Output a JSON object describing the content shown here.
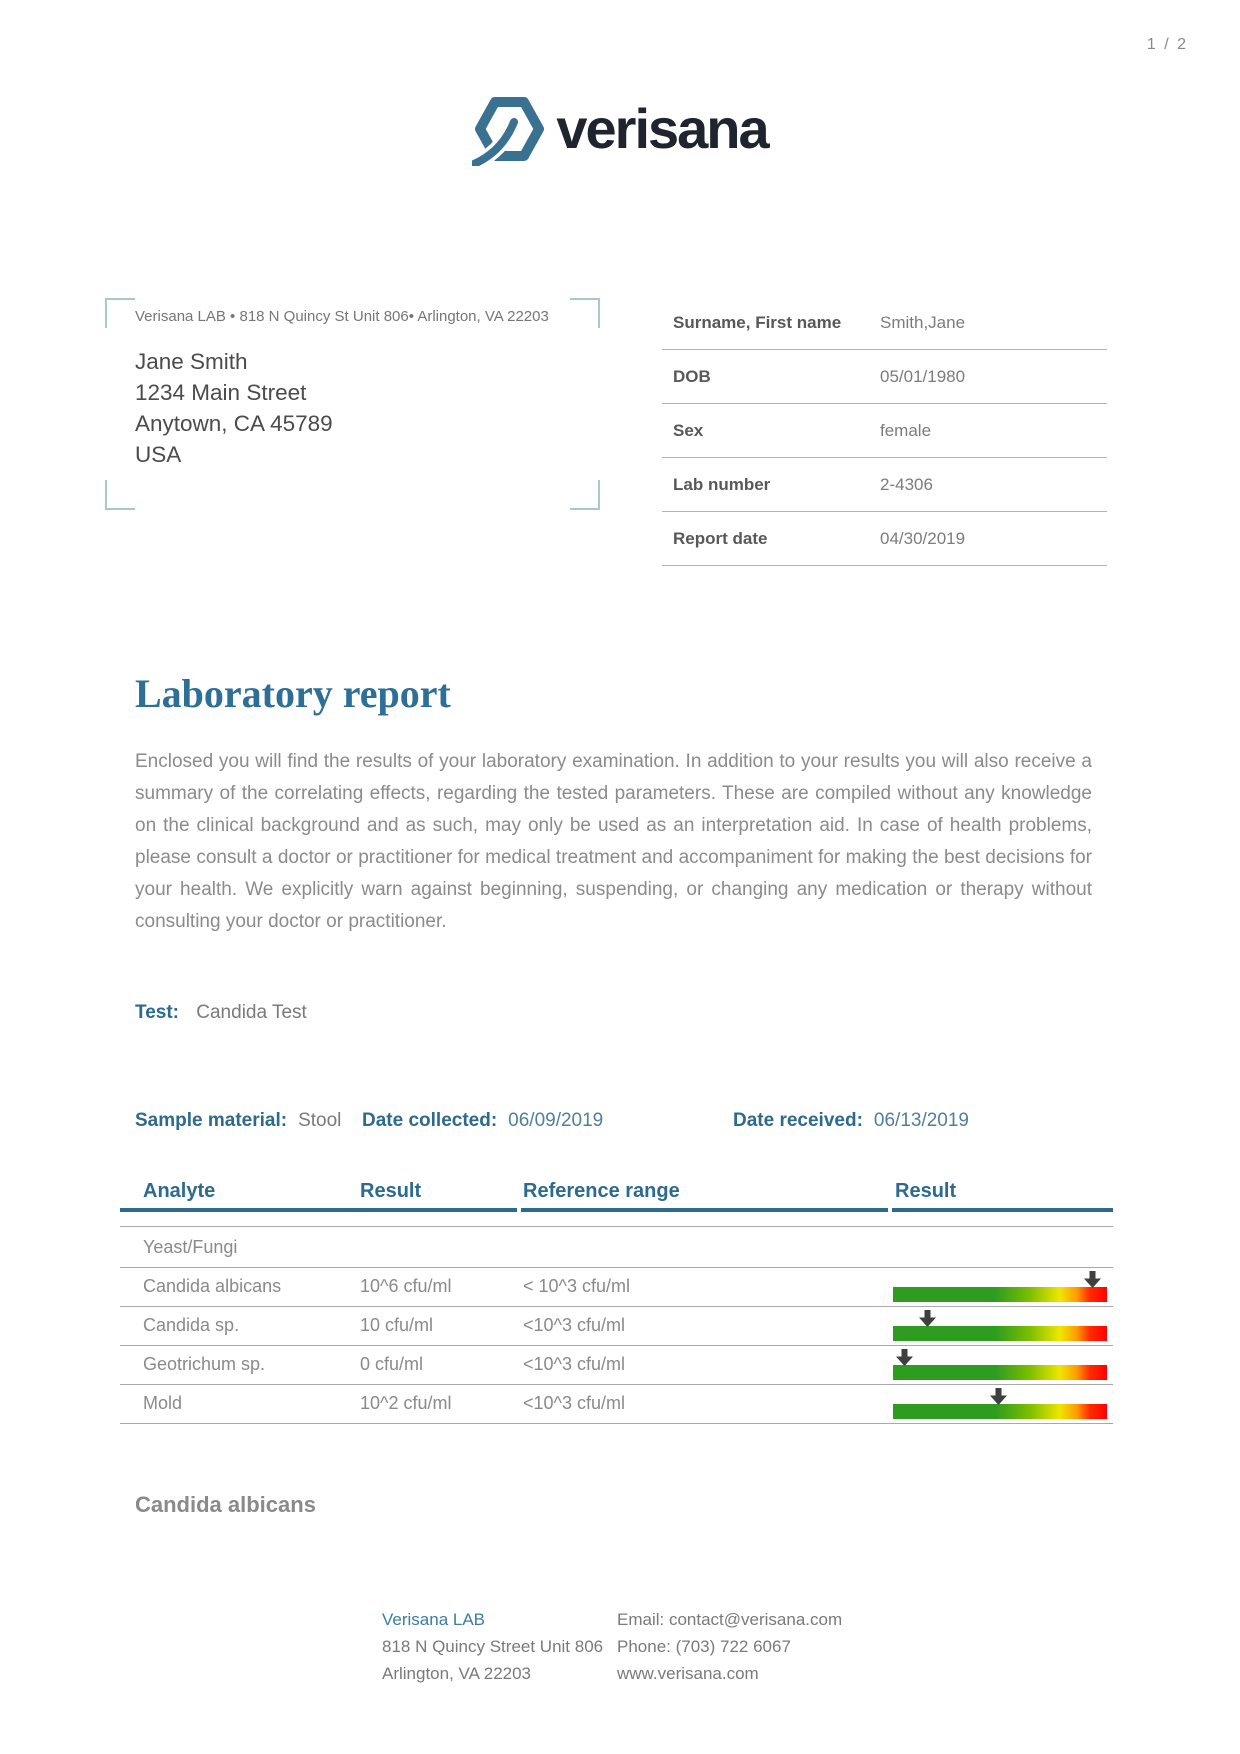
{
  "page": {
    "number": "1 / 2"
  },
  "logo": {
    "text": "verisana",
    "icon_color": "#3a7191",
    "text_color": "#20242e"
  },
  "address_window": {
    "sender_line": "Verisana LAB • 818 N Quincy St Unit 806• Arlington, VA 22203",
    "recipient": [
      "Jane Smith",
      "1234 Main Street",
      "Anytown, CA 45789",
      "USA"
    ]
  },
  "patient_info": {
    "rows": [
      {
        "label": "Surname, First name",
        "value": "Smith,Jane"
      },
      {
        "label": "DOB",
        "value": "05/01/1980"
      },
      {
        "label": "Sex",
        "value": "female"
      },
      {
        "label": "Lab number",
        "value": "2-4306"
      },
      {
        "label": "Report date",
        "value": "04/30/2019"
      }
    ]
  },
  "report": {
    "title": "Laboratory report",
    "intro": "Enclosed you will find the results of your laboratory examination. In addition to your results you will also receive a summary of the correlating effects, regarding the tested parameters. These are compiled without any knowledge on the clinical background and as such, may only be used as an interpretation aid. In case of health problems, please consult a doctor or practitioner for medical treatment and accompaniment for making the best decisions for your health. We explicitly warn against beginning, suspending, or changing any medication or therapy without consulting your doctor or practitioner.",
    "test_label": "Test:",
    "test_value": "Candida Test"
  },
  "sample": {
    "material_label": "Sample material:",
    "material_value": "Stool",
    "collected_label": "Date collected:",
    "collected_value": "06/09/2019",
    "received_label": "Date received:",
    "received_value": "06/13/2019"
  },
  "results_table": {
    "headers": [
      "Analyte",
      "Result",
      "Reference range",
      "Result"
    ],
    "section": "Yeast/Fungi",
    "rows": [
      {
        "analyte": "Candida albicans",
        "result": "10^6 cfu/ml",
        "reference": "< 10^3 cfu/ml",
        "marker_pct": 93
      },
      {
        "analyte": "Candida sp.",
        "result": "10 cfu/ml",
        "reference": "<10^3 cfu/ml",
        "marker_pct": 16
      },
      {
        "analyte": "Geotrichum sp.",
        "result": "0 cfu/ml",
        "reference": "<10^3 cfu/ml",
        "marker_pct": 5
      },
      {
        "analyte": "Mold",
        "result": "10^2 cfu/ml",
        "reference": "<10^3 cfu/ml",
        "marker_pct": 49
      }
    ],
    "bar_colors": [
      "#2e9c1f",
      "#efe600",
      "#ff0000"
    ],
    "accent_color": "#2d6a8d"
  },
  "section_heading": "Candida albicans",
  "footer": {
    "lab_name": "Verisana LAB",
    "address1": "818 N Quincy Street Unit 806",
    "address2": "Arlington, VA 22203",
    "email": "Email: contact@verisana.com",
    "phone": "Phone: (703) 722 6067",
    "website": "www.verisana.com"
  }
}
